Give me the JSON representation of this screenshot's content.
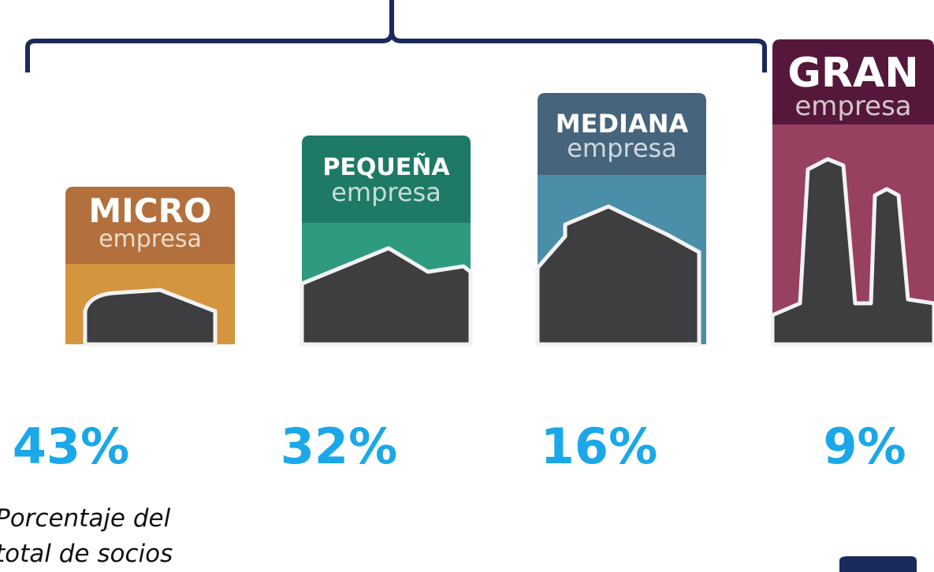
{
  "cards": [
    {
      "title": "MICRO",
      "subtitle": "empresa",
      "percent": "43%"
    },
    {
      "title": "PEQUEÑA",
      "subtitle": "empresa",
      "percent": "32%"
    },
    {
      "title": "MEDIANA",
      "subtitle": "empresa",
      "percent": "16%"
    },
    {
      "title": "GRAN",
      "subtitle": "empresa",
      "percent": "9%"
    }
  ],
  "note": [
    "Porcentaje del",
    "total de socios"
  ]
}
